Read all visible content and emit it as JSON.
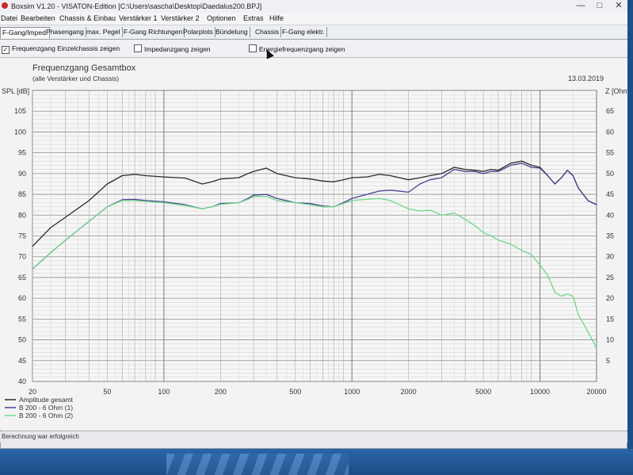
{
  "window": {
    "title": "Boxsim V1.20 - VISATON-Edition [C:\\Users\\sascha\\Desktop\\Daedalus200.BPJ]"
  },
  "menu": [
    "Datei",
    "Bearbeiten",
    "Chassis & Einbau",
    "Verstärker 1",
    "Verstärker 2",
    "Optionen",
    "Extras",
    "Hilfe"
  ],
  "tabs": [
    "F-Gang/Imped.",
    "Phasengang",
    "max. Pegel",
    "F-Gang Richtungen",
    "Polarplots",
    "Bündelung",
    "Chassis",
    "F-Gang elektr."
  ],
  "options": {
    "einzel": "Frequenzgang Einzelchassis zeigen",
    "impedanz": "Impedanzgang zeigen",
    "energie": "Energiefrequenzgang zeigen"
  },
  "status": "Berechnung war erfolgreich",
  "chart_data": {
    "type": "line",
    "title": "Frequenzgang Gesamtbox",
    "subtitle": "(alle Verstärker und Chassis)",
    "date": "13.03.2019",
    "ylabel": "SPL [dB]",
    "y2label": "Z [Ohm]",
    "xscale": "log",
    "xlim": [
      20,
      20000
    ],
    "ylim": [
      40,
      110
    ],
    "y2lim": [
      0,
      70
    ],
    "xticks": [
      20,
      50,
      100,
      200,
      500,
      1000,
      2000,
      5000,
      10000,
      20000
    ],
    "yticks": [
      40,
      45,
      50,
      55,
      60,
      65,
      70,
      75,
      80,
      85,
      90,
      95,
      100,
      105
    ],
    "y2ticks": [
      5,
      10,
      15,
      20,
      25,
      30,
      35,
      40,
      45,
      50,
      55,
      60,
      65
    ],
    "grid": true,
    "legend_position": "bottom-left",
    "series": [
      {
        "name": "Amplitude gesamt",
        "color": "#2b2b2b",
        "x": [
          20,
          25,
          30,
          40,
          50,
          60,
          70,
          80,
          100,
          130,
          160,
          180,
          200,
          250,
          280,
          300,
          350,
          400,
          500,
          600,
          700,
          800,
          900,
          1000,
          1200,
          1400,
          1600,
          2000,
          2300,
          2600,
          3000,
          3500,
          4000,
          4500,
          5000,
          5500,
          6000,
          7000,
          8000,
          9000,
          10000,
          11000,
          12000,
          13000,
          14000,
          15000,
          16000,
          18000,
          20000
        ],
        "y": [
          72.5,
          77,
          79.5,
          83.5,
          87.5,
          89.5,
          89.8,
          89.5,
          89.2,
          88.9,
          87.5,
          88,
          88.7,
          89,
          90,
          90.5,
          91.3,
          90,
          89,
          88.7,
          88.2,
          88,
          88.5,
          89,
          89.2,
          89.8,
          89.5,
          88.5,
          89,
          89.5,
          90,
          91.5,
          91,
          90.8,
          90.5,
          91,
          90.8,
          92.5,
          93,
          92,
          91.5,
          89.5,
          87.5,
          89,
          90.8,
          89.5,
          86.5,
          83.5,
          82.5
        ]
      },
      {
        "name": "B 200 - 6 Ohm (1)",
        "color": "#4a3f8f",
        "x": [
          20,
          25,
          30,
          40,
          50,
          60,
          70,
          80,
          100,
          130,
          160,
          180,
          200,
          250,
          280,
          300,
          350,
          400,
          500,
          600,
          700,
          800,
          900,
          1000,
          1200,
          1400,
          1600,
          2000,
          2300,
          2600,
          3000,
          3500,
          4000,
          4500,
          5000,
          5500,
          6000,
          7000,
          8000,
          9000,
          10000,
          11000,
          12000,
          13000,
          14000,
          15000,
          16000,
          18000,
          20000
        ],
        "y": [
          67,
          71,
          74,
          78.5,
          82,
          83.7,
          83.8,
          83.5,
          83.2,
          82.5,
          81.5,
          82,
          82.8,
          83,
          84,
          84.8,
          85,
          84,
          83,
          82.8,
          82.2,
          82,
          83,
          84,
          85,
          85.8,
          86,
          85.5,
          87.5,
          88.5,
          89,
          91,
          90.5,
          90.5,
          90,
          90.5,
          90.5,
          92,
          92.5,
          91.5,
          91.3,
          89.5,
          87.5,
          89,
          90.8,
          89.5,
          86.5,
          83.5,
          82.5
        ]
      },
      {
        "name": "B 200 - 6 Ohm (2)",
        "color": "#6fd88a",
        "x": [
          20,
          25,
          30,
          40,
          50,
          60,
          70,
          80,
          100,
          130,
          160,
          180,
          200,
          250,
          280,
          300,
          350,
          400,
          500,
          600,
          700,
          800,
          900,
          1000,
          1200,
          1400,
          1600,
          2000,
          2300,
          2600,
          3000,
          3500,
          4000,
          4500,
          5000,
          5500,
          6000,
          7000,
          8000,
          9000,
          10000,
          11000,
          12000,
          13000,
          14000,
          15000,
          16000,
          18000,
          20000
        ],
        "y": [
          67,
          71,
          74,
          78.5,
          82,
          83.5,
          83.5,
          83.3,
          83,
          82.3,
          81.5,
          82,
          82.6,
          83,
          83.8,
          84.5,
          84.5,
          83.5,
          83,
          82.5,
          82,
          82,
          82.8,
          83.5,
          83.8,
          84,
          83.5,
          81.5,
          81,
          81.2,
          80,
          80.5,
          79,
          77.5,
          75.8,
          75,
          74,
          73,
          71.5,
          70.5,
          68,
          65.5,
          61.5,
          60.5,
          61,
          60.5,
          56,
          52,
          48
        ]
      }
    ]
  }
}
